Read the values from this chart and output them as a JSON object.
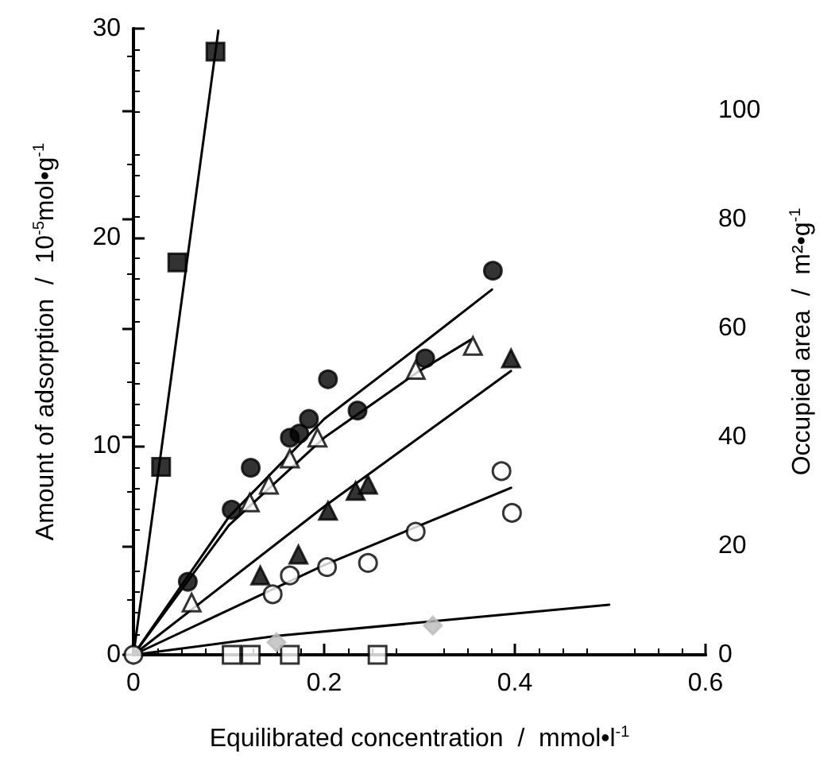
{
  "chart_data": {
    "type": "scatter",
    "xlabel": "Equilibrated concentration  /  mmol•l$^{-1}$",
    "ylabel": "Amount of adsorption  /  10$^{-5}$mol•g$^{-1}$",
    "y2label": "Occupied area  /  m²•g$^{-1}$",
    "xlim": [
      0,
      0.6
    ],
    "xticks": [
      0,
      0.2,
      0.4,
      0.6
    ],
    "ylim": [
      0,
      30
    ],
    "yticks": [
      0,
      10,
      20,
      30
    ],
    "y2lim": [
      0,
      115
    ],
    "y2ticks": [
      0,
      20,
      40,
      60,
      80,
      100
    ],
    "grid": false,
    "series": [
      {
        "type": "line",
        "marker": "none",
        "color": "#000000",
        "x": [
          0,
          0.089
        ],
        "values": [
          0,
          29.9
        ]
      },
      {
        "type": "line",
        "marker": "none",
        "color": "#000000",
        "x": [
          0,
          0.1,
          0.2,
          0.3,
          0.376
        ],
        "values": [
          0,
          6.6,
          11.3,
          14.8,
          17.5
        ]
      },
      {
        "type": "line",
        "marker": "none",
        "color": "#000000",
        "x": [
          0,
          0.1,
          0.2,
          0.3,
          0.354
        ],
        "values": [
          0,
          6.2,
          10.4,
          13.6,
          15.1
        ]
      },
      {
        "type": "line",
        "marker": "none",
        "color": "#000000",
        "x": [
          0,
          0.2,
          0.396
        ],
        "values": [
          0,
          7.1,
          13.6
        ]
      },
      {
        "type": "line",
        "marker": "none",
        "color": "#000000",
        "x": [
          0,
          0.2,
          0.396
        ],
        "values": [
          0,
          4.3,
          8.0
        ]
      },
      {
        "type": "line",
        "marker": "none",
        "color": "#000000",
        "x": [
          0,
          0.15,
          0.499
        ],
        "values": [
          0,
          0.9,
          2.4
        ]
      },
      {
        "marker": "square",
        "color": "#000000",
        "x": [
          0.029,
          0.046,
          0.086
        ],
        "values": [
          9.0,
          18.8,
          28.9
        ]
      },
      {
        "marker": "circle",
        "color": "#000000",
        "x": [
          0.057,
          0.103,
          0.123,
          0.164,
          0.174,
          0.184,
          0.204,
          0.235,
          0.306,
          0.377
        ],
        "values": [
          3.5,
          6.95,
          8.96,
          10.4,
          10.6,
          11.3,
          13.2,
          11.7,
          14.2,
          18.4
        ]
      },
      {
        "marker": "triangle",
        "color": "#ffffff",
        "x": [
          0.061,
          0.122,
          0.142,
          0.164,
          0.193,
          0.296,
          0.356
        ],
        "values": [
          2.5,
          7.3,
          8.15,
          9.4,
          10.4,
          13.65,
          14.8
        ]
      },
      {
        "marker": "triangle",
        "color": "#000000",
        "x": [
          0.133,
          0.173,
          0.204,
          0.233,
          0.246,
          0.396
        ],
        "values": [
          3.8,
          4.8,
          6.9,
          7.85,
          8.15,
          14.2
        ]
      },
      {
        "marker": "circle",
        "color": "#ffffff",
        "x": [
          0,
          0.146,
          0.164,
          0.203,
          0.246,
          0.296,
          0.386,
          0.397
        ],
        "values": [
          0,
          2.9,
          3.8,
          4.2,
          4.4,
          5.9,
          8.8,
          6.8
        ]
      },
      {
        "marker": "square",
        "color": "#ffffff",
        "x": [
          0.103,
          0.123,
          0.164,
          0.256
        ],
        "values": [
          0,
          0,
          0,
          0
        ]
      },
      {
        "marker": "diamond",
        "color": "#bbbbbb",
        "x": [
          0.15,
          0.314
        ],
        "values": [
          0.6,
          1.4
        ]
      }
    ]
  }
}
